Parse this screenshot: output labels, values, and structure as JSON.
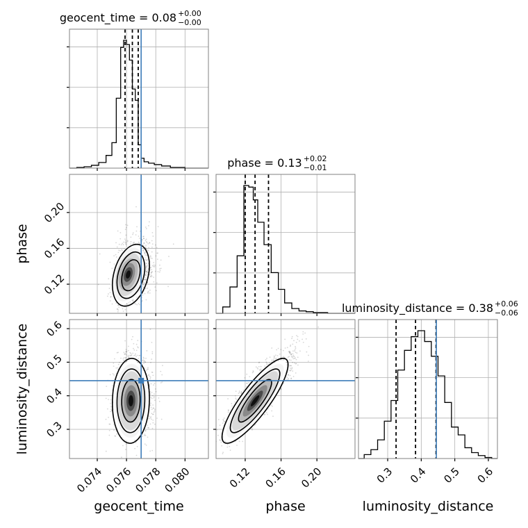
{
  "chart_data": {
    "type": "corner",
    "parameters": [
      "geocent_time",
      "phase",
      "luminosity_distance"
    ],
    "truth": {
      "geocent_time": 0.077,
      "phase": null,
      "luminosity_distance": 0.445
    },
    "truth_color": "#3b7bb8",
    "axis_labels": {
      "geocent_time": "geocent_time",
      "phase": "phase",
      "luminosity_distance": "luminosity_distance"
    },
    "titles": [
      {
        "param": "geocent_time",
        "text": "geocent_time = 0.08",
        "sup": "+0.00",
        "sub": "−0.00"
      },
      {
        "param": "phase",
        "text": "phase = 0.13",
        "sup": "+0.02",
        "sub": "−0.01"
      },
      {
        "param": "luminosity_distance",
        "text": "luminosity_distance = 0.38",
        "sup": "+0.06",
        "sub": "−0.06"
      }
    ],
    "ticks": {
      "geocent_time": {
        "values": [
          0.074,
          0.076,
          0.078,
          0.08
        ],
        "labels": [
          "0.074",
          "0.076",
          "0.078",
          "0.080"
        ],
        "range": [
          0.0721,
          0.0816
        ]
      },
      "phase": {
        "values": [
          0.12,
          0.16,
          0.2
        ],
        "labels": [
          "0.12",
          "0.16",
          "0.20"
        ],
        "range": [
          0.0875,
          0.2425
        ]
      },
      "luminosity_distance": {
        "values": [
          0.3,
          0.4,
          0.5,
          0.6
        ],
        "labels": [
          "0.3",
          "0.4",
          "0.5",
          "0.6"
        ],
        "range": [
          0.213,
          0.627
        ]
      }
    },
    "histograms": {
      "geocent_time": {
        "bin_edges": [
          0.0721,
          0.0726,
          0.0731,
          0.0736,
          0.0741,
          0.0746,
          0.075,
          0.0753,
          0.0756,
          0.0758,
          0.076,
          0.0762,
          0.0764,
          0.0766,
          0.0768,
          0.077,
          0.0772,
          0.0775,
          0.0779,
          0.0784,
          0.079,
          0.0795,
          0.08,
          0.0816
        ],
        "counts": [
          0,
          1,
          2,
          4,
          8,
          18,
          36,
          99,
          171,
          181,
          175,
          153,
          112,
          96,
          33,
          14,
          9,
          7,
          5,
          3,
          1,
          1,
          0
        ],
        "quantiles": [
          0.0759,
          0.0764,
          0.0768
        ]
      },
      "phase": {
        "bin_edges": [
          0.0875,
          0.095,
          0.103,
          0.111,
          0.1185,
          0.124,
          0.129,
          0.134,
          0.141,
          0.149,
          0.157,
          0.164,
          0.172,
          0.18,
          0.188,
          0.196,
          0.204,
          0.212,
          0.2425
        ],
        "counts": [
          0,
          8,
          33,
          72,
          160,
          158,
          142,
          114,
          86,
          51,
          30,
          13,
          6,
          3,
          2,
          1,
          1,
          0
        ],
        "quantiles": [
          0.12,
          0.131,
          0.146
        ]
      },
      "luminosity_distance": {
        "bin_edges": [
          0.213,
          0.23,
          0.25,
          0.27,
          0.29,
          0.31,
          0.33,
          0.35,
          0.37,
          0.39,
          0.41,
          0.43,
          0.45,
          0.47,
          0.49,
          0.51,
          0.53,
          0.55,
          0.57,
          0.59,
          0.61,
          0.627
        ],
        "counts": [
          0,
          4,
          9,
          19,
          38,
          59,
          90,
          110,
          124,
          130,
          119,
          104,
          84,
          57,
          32,
          24,
          11,
          6,
          3,
          1,
          0
        ],
        "quantiles": [
          0.325,
          0.383,
          0.444
        ]
      }
    },
    "density_2d": [
      {
        "x": "geocent_time",
        "y": "phase",
        "mean": [
          0.0763,
          0.13
        ],
        "sd": [
          0.00055,
          0.015
        ],
        "rho": 0.32
      },
      {
        "x": "geocent_time",
        "y": "luminosity_distance",
        "mean": [
          0.0763,
          0.385
        ],
        "sd": [
          0.00055,
          0.055
        ],
        "rho": 0.05
      },
      {
        "x": "phase",
        "y": "luminosity_distance",
        "mean": [
          0.131,
          0.385
        ],
        "sd": [
          0.016,
          0.055
        ],
        "rho": 0.85
      }
    ],
    "contour_levels_sigma": [
      1,
      1.5,
      2
    ],
    "grid": true,
    "sample_color": "#000000",
    "legend": "none"
  }
}
